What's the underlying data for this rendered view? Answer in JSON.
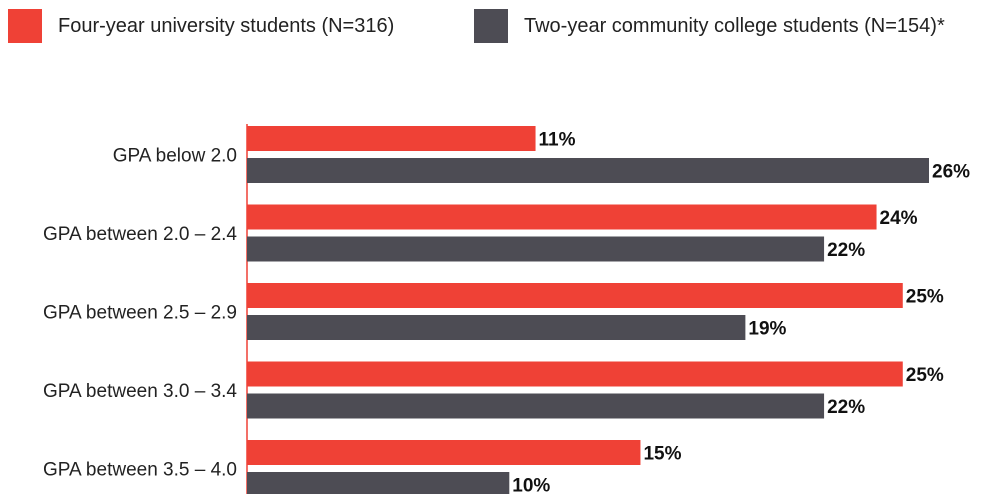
{
  "chart_data": {
    "type": "bar",
    "orientation": "horizontal",
    "categories": [
      "GPA below 2.0",
      "GPA between 2.0 – 2.4",
      "GPA between 2.5 – 2.9",
      "GPA between 3.0 – 3.4",
      "GPA between 3.5 – 4.0"
    ],
    "series": [
      {
        "name": "Four-year university students (N=316)",
        "color": "#ef4136",
        "values": [
          11,
          24,
          25,
          25,
          15
        ],
        "labels": [
          "11%",
          "24%",
          "25%",
          "25%",
          "15%"
        ]
      },
      {
        "name": "Two-year community college students (N=154)*",
        "color": "#4d4c54",
        "values": [
          26,
          22,
          19,
          22,
          10
        ],
        "labels": [
          "26%",
          "22%",
          "19%",
          "22%",
          "10%"
        ]
      }
    ],
    "value_unit": "%",
    "xlim": [
      0,
      26
    ],
    "legend_position": "top-left",
    "grid": false,
    "axis_color": "#ef4136"
  }
}
